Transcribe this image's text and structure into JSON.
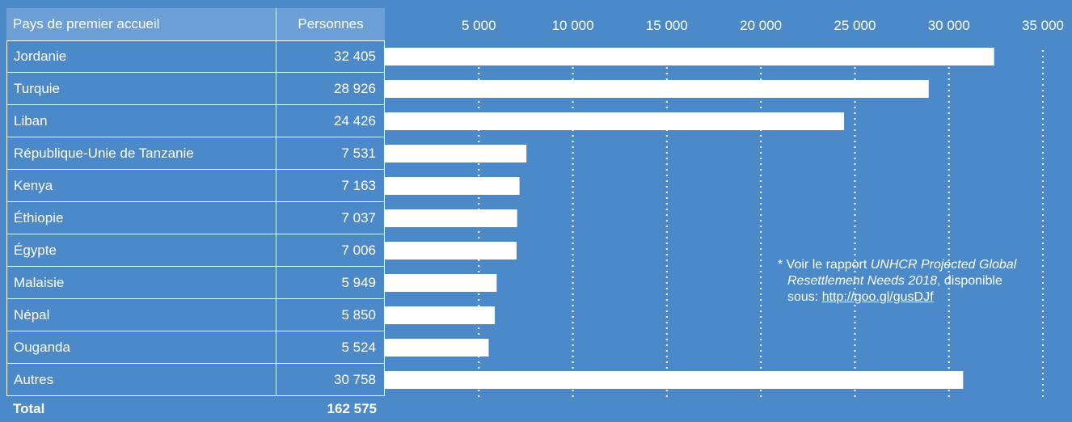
{
  "table": {
    "header": {
      "country": "Pays de premier accueil",
      "value": "Personnes"
    },
    "rows": [
      {
        "country": "Jordanie",
        "value_label": "32 405"
      },
      {
        "country": "Turquie",
        "value_label": "28 926"
      },
      {
        "country": "Liban",
        "value_label": "24 426"
      },
      {
        "country": "République-Unie de Tanzanie",
        "value_label": "7 531"
      },
      {
        "country": "Kenya",
        "value_label": "7 163"
      },
      {
        "country": "Éthiopie",
        "value_label": "7 037"
      },
      {
        "country": "Égypte",
        "value_label": "7 006"
      },
      {
        "country": "Malaisie",
        "value_label": "5 949"
      },
      {
        "country": "Népal",
        "value_label": "5 850"
      },
      {
        "country": "Ouganda",
        "value_label": "5 524"
      },
      {
        "country": "Autres",
        "value_label": "30 758"
      }
    ],
    "total": {
      "label": "Total",
      "value": "162 575"
    }
  },
  "chart_data": {
    "type": "bar",
    "orientation": "horizontal",
    "categories": [
      "Jordanie",
      "Turquie",
      "Liban",
      "République-Unie de Tanzanie",
      "Kenya",
      "Éthiopie",
      "Égypte",
      "Malaisie",
      "Népal",
      "Ouganda",
      "Autres"
    ],
    "values": [
      32405,
      28926,
      24426,
      7531,
      7163,
      7037,
      7006,
      5949,
      5850,
      5524,
      30758
    ],
    "xlim": [
      0,
      35000
    ],
    "xticks": [
      5000,
      10000,
      15000,
      20000,
      25000,
      30000,
      35000
    ],
    "xtick_labels": [
      "5 000",
      "10 000",
      "15 000",
      "20 000",
      "25 000",
      "30 000",
      "35 000"
    ],
    "grid": "vertical dotted",
    "bar_color": "#ffffff"
  },
  "footnote": {
    "line1_prefix": "* Voir le rapport ",
    "line1_italic": "UNHCR Projected Global",
    "line2_italic": "Resettlement Needs 2018",
    "line2_suffix": ", disponible",
    "line3_prefix": "sous: ",
    "link": "http://goo.gl/gusDJf"
  },
  "colors": {
    "background": "#4b89c8",
    "header": "#6b9fd6",
    "bar": "#ffffff"
  }
}
